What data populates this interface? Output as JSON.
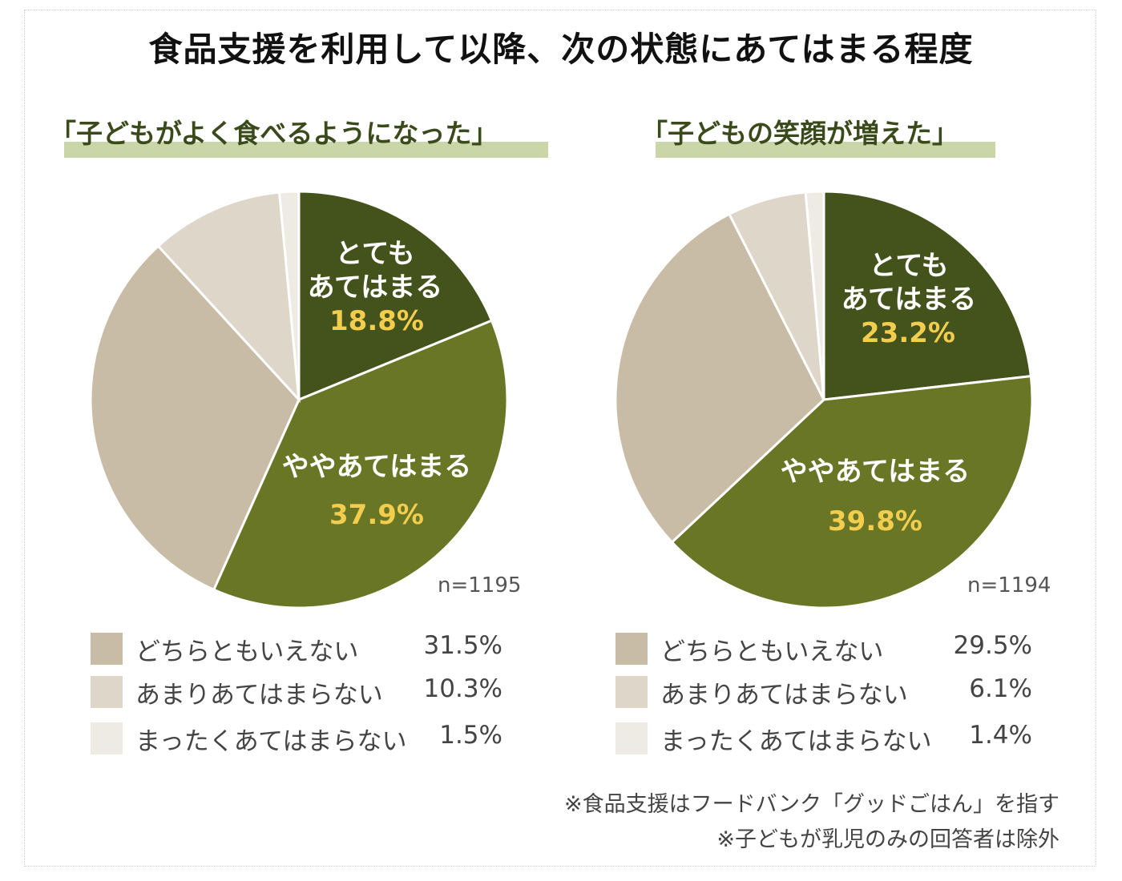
{
  "title": "食品支援を利用して以降、次の状態にあてはまる程度",
  "colors": {
    "very": "#44531b",
    "somewhat": "#687626",
    "neutral": "#c8bca6",
    "not_much": "#ddd6c9",
    "not_at_all": "#eeebe5",
    "pct_text": "#f2cd4e",
    "highlight": "#cbd6a8"
  },
  "chart_data": [
    {
      "type": "pie",
      "title": "「子どもがよく食べるようになった」",
      "n_label": "n=1195",
      "slices": [
        {
          "label": "とてもあてはまる",
          "value": 18.8,
          "value_label": "18.8%"
        },
        {
          "label": "ややあてはまる",
          "value": 37.9,
          "value_label": "37.9%"
        },
        {
          "label": "どちらともいえない",
          "value": 31.5,
          "value_label": "31.5%"
        },
        {
          "label": "あまりあてはまらない",
          "value": 10.3,
          "value_label": "10.3%"
        },
        {
          "label": "まったくあてはまらない",
          "value": 1.5,
          "value_label": "1.5%"
        }
      ]
    },
    {
      "type": "pie",
      "title": "「子どもの笑顔が増えた」",
      "n_label": "n=1194",
      "slices": [
        {
          "label": "とてもあてはまる",
          "value": 23.2,
          "value_label": "23.2%"
        },
        {
          "label": "ややあてはまる",
          "value": 39.8,
          "value_label": "39.8%"
        },
        {
          "label": "どちらともいえない",
          "value": 29.5,
          "value_label": "29.5%"
        },
        {
          "label": "あまりあてはまらない",
          "value": 6.1,
          "value_label": "6.1%"
        },
        {
          "label": "まったくあてはまらない",
          "value": 1.4,
          "value_label": "1.4%"
        }
      ]
    }
  ],
  "inner_labels": {
    "very_line1": "とても",
    "very_line2": "あてはまる",
    "somewhat": "ややあてはまる"
  },
  "notes": [
    "※食品支援はフードバンク「グッドごはん」を指す",
    "※子どもが乳児のみの回答者は除外"
  ]
}
